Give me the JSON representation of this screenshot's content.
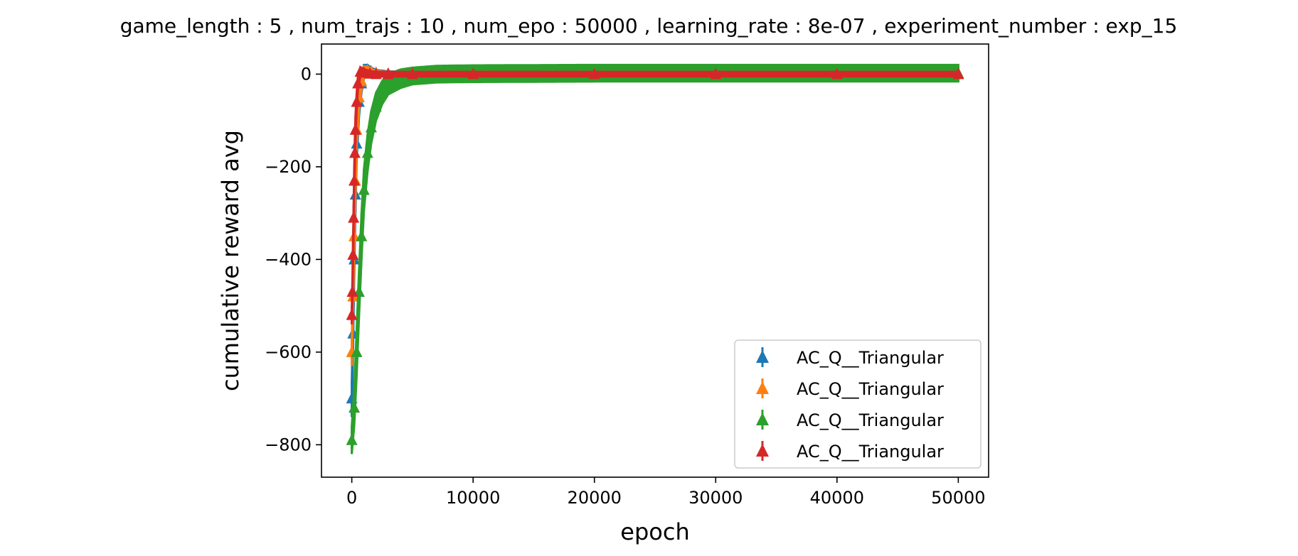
{
  "chart_data": {
    "type": "scatter",
    "title": "game_length : 5 , num_trajs : 10 , num_epo : 50000 , learning_rate : 8e-07 , experiment_number : exp_15",
    "xlabel": "epoch",
    "ylabel": "cumulative reward avg",
    "xlim": [
      -2500,
      52500
    ],
    "ylim": [
      -870,
      65
    ],
    "xticks": [
      0,
      10000,
      20000,
      30000,
      40000,
      50000
    ],
    "xtick_labels": [
      "0",
      "10000",
      "20000",
      "30000",
      "40000",
      "50000"
    ],
    "yticks": [
      0,
      -200,
      -400,
      -600,
      -800
    ],
    "ytick_labels": [
      "0",
      "−200",
      "−400",
      "−600",
      "−800"
    ],
    "grid": false,
    "legend_location": "lower-right",
    "marker": "triangle-up with error bars",
    "series": [
      {
        "name": "AC_Q__Triangular",
        "color": "#1f77b4",
        "x": [
          0,
          100,
          200,
          300,
          400,
          600,
          800,
          1000,
          1300,
          1600,
          2000,
          3000,
          5000,
          10000,
          20000,
          30000,
          40000,
          50000
        ],
        "y": [
          -700,
          -560,
          -400,
          -260,
          -150,
          -60,
          -20,
          5,
          10,
          6,
          3,
          1,
          0,
          0,
          0,
          0,
          0,
          0
        ],
        "err": [
          40,
          40,
          40,
          40,
          35,
          30,
          20,
          15,
          10,
          8,
          6,
          5,
          5,
          5,
          5,
          5,
          5,
          5
        ]
      },
      {
        "name": "AC_Q__Triangular",
        "color": "#ff7f0e",
        "x": [
          0,
          100,
          200,
          300,
          400,
          600,
          800,
          1000,
          1300,
          1600,
          2000,
          3000,
          5000,
          10000,
          20000,
          30000,
          40000,
          50000
        ],
        "y": [
          -600,
          -480,
          -350,
          -230,
          -120,
          -50,
          -15,
          5,
          8,
          5,
          2,
          1,
          0,
          0,
          0,
          0,
          0,
          0
        ],
        "err": [
          30,
          30,
          30,
          30,
          30,
          25,
          18,
          12,
          8,
          6,
          5,
          4,
          4,
          4,
          4,
          4,
          4,
          4
        ]
      },
      {
        "name": "AC_Q__Triangular",
        "color": "#2ca02c",
        "x": [
          0,
          200,
          400,
          600,
          800,
          1000,
          1300,
          1600,
          2000,
          2500,
          3000,
          4000,
          5000,
          7000,
          10000,
          20000,
          30000,
          40000,
          50000
        ],
        "y": [
          -790,
          -720,
          -600,
          -470,
          -350,
          -250,
          -170,
          -115,
          -70,
          -40,
          -22,
          -10,
          -4,
          0,
          1,
          2,
          2,
          2,
          2
        ],
        "err": [
          30,
          40,
          50,
          50,
          50,
          45,
          40,
          35,
          30,
          25,
          22,
          20,
          18,
          18,
          18,
          18,
          18,
          18,
          18
        ]
      },
      {
        "name": "AC_Q__Triangular",
        "color": "#d62728",
        "x": [
          0,
          50,
          100,
          150,
          200,
          250,
          300,
          400,
          500,
          700,
          1000,
          1500,
          2000,
          3000,
          5000,
          10000,
          20000,
          30000,
          40000,
          50000
        ],
        "y": [
          -520,
          -470,
          -390,
          -310,
          -230,
          -170,
          -120,
          -60,
          -20,
          5,
          3,
          1,
          0,
          0,
          0,
          0,
          0,
          0,
          0,
          0
        ],
        "err": [
          20,
          30,
          30,
          30,
          30,
          30,
          30,
          20,
          15,
          10,
          8,
          6,
          5,
          5,
          5,
          5,
          5,
          5,
          5,
          5
        ]
      }
    ]
  }
}
